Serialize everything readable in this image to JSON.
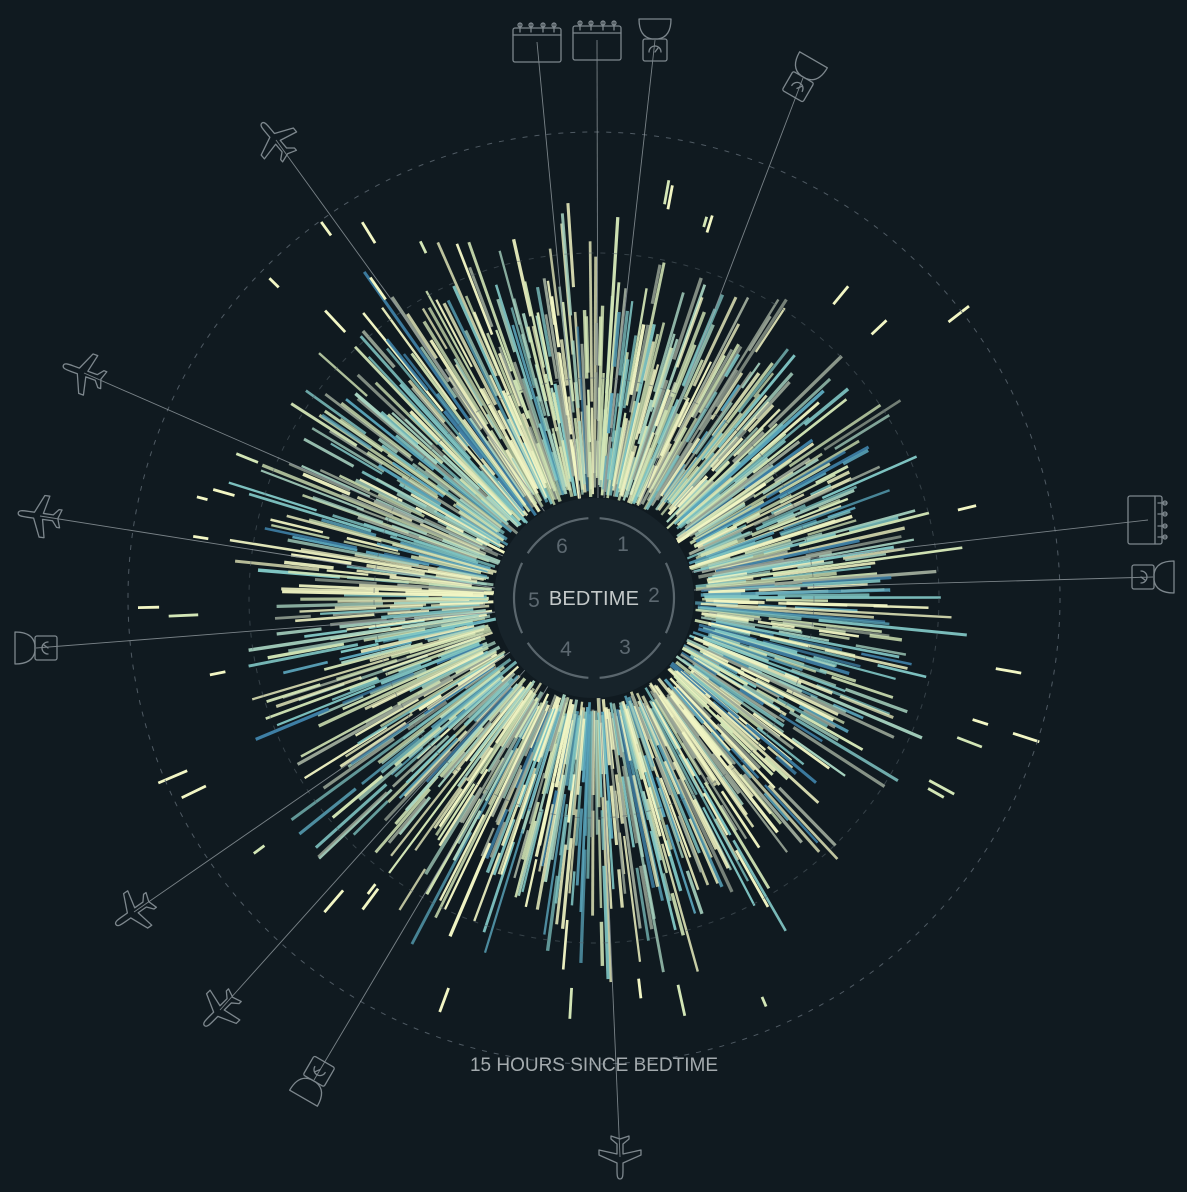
{
  "center_label": "BEDTIME",
  "hour_labels": [
    "1",
    "2",
    "3",
    "4",
    "5",
    "6"
  ],
  "ring_label": "15 HOURS SINCE BEDTIME",
  "colors": {
    "background": "#101a20",
    "center_disk": "#17232a",
    "dash_ring": "#56626a",
    "pointer_line": "#8c959a",
    "palette": [
      "#f2f6c4",
      "#d3e6b6",
      "#a7d3c0",
      "#80c6c4",
      "#5aa5bb",
      "#3e7fa5",
      "#9aa697"
    ]
  },
  "chart_data": {
    "type": "radial",
    "note_text": "",
    "center": "BEDTIME",
    "radial_axis_max_hours": 15,
    "hour_ticks": [
      1,
      2,
      3,
      4,
      5,
      6
    ],
    "event_markers": [
      {
        "icon": "calendar-icon"
      },
      {
        "icon": "calendar-icon"
      },
      {
        "icon": "scale-icon"
      },
      {
        "icon": "scale-icon"
      },
      {
        "icon": "calendar-icon"
      },
      {
        "icon": "scale-icon"
      },
      {
        "icon": "airplane-icon"
      },
      {
        "icon": "scale-icon"
      },
      {
        "icon": "airplane-icon"
      },
      {
        "icon": "airplane-icon"
      },
      {
        "icon": "scale-icon"
      },
      {
        "icon": "airplane-icon"
      },
      {
        "icon": "airplane-icon"
      },
      {
        "icon": "airplane-icon"
      }
    ]
  }
}
